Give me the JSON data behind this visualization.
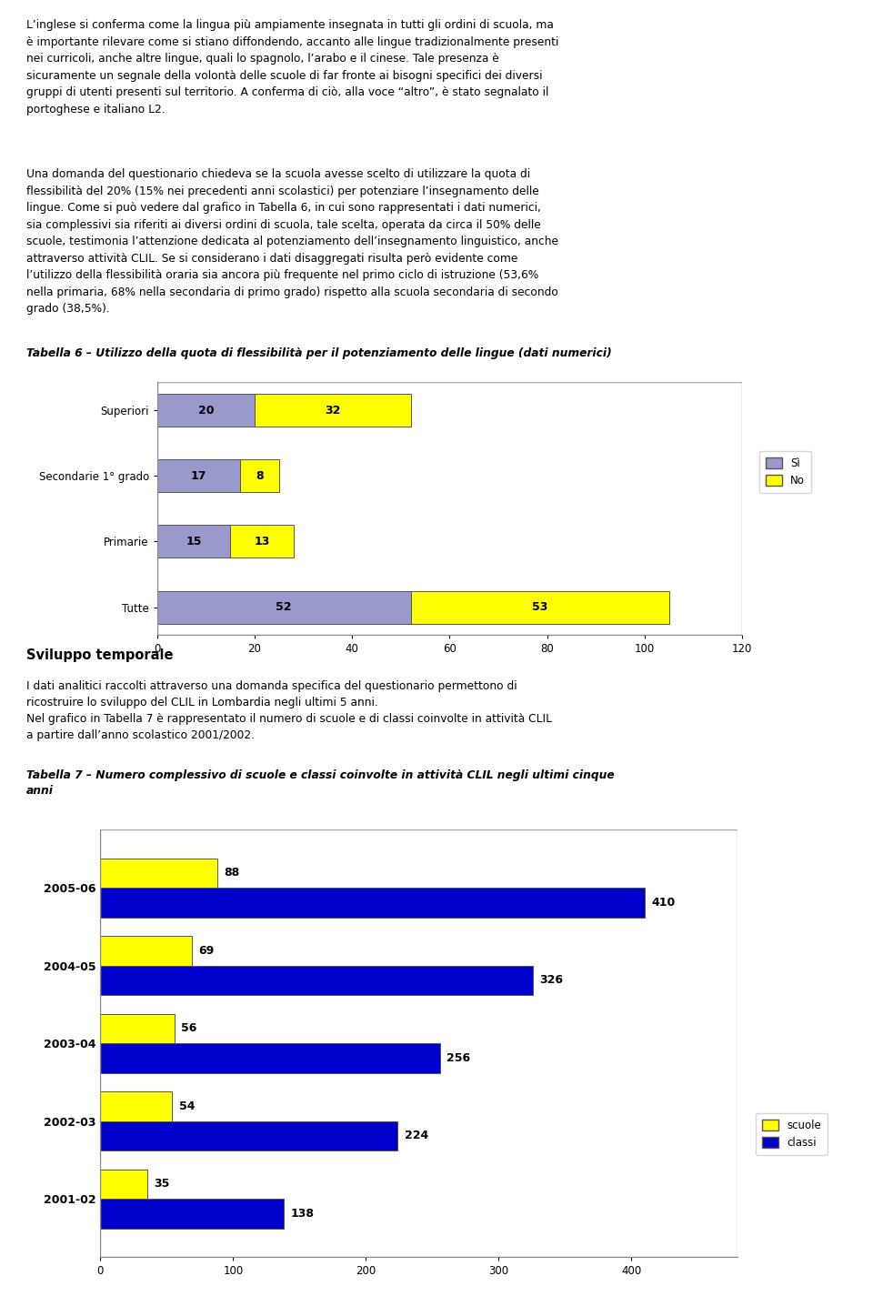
{
  "page_bg": "#ffffff",
  "text_color": "#000000",
  "intro_text": "L’inglese si conferma come la lingua più ampiamente insegnata in tutti gli ordini di scuola, ma\nè importante rilevare come si stiano diffondendo, accanto alle lingue tradizionalmente presenti\nnei curricoli, anche altre lingue, quali lo spagnolo, l’arabo e il cinese. Tale presenza è\nsicuramente un segnale della volontà delle scuole di far fronte ai bisogni specifici dei diversi\ngruppi di utenti presenti sul territorio. A conferma di ciò, alla voce “altro”, è stato segnalato il\nportoghese e italiano L2.",
  "mid_text": "Una domanda del questionario chiedeva se la scuola avesse scelto di utilizzare la quota di\nflessibilità del 20% (15% nei precedenti anni scolastici) per potenziare l’insegnamento delle\nlingue. Come si può vedere dal grafico in Tabella 6, in cui sono rappresentati i dati numerici,\nsia complessivi sia riferiti ai diversi ordini di scuola, tale scelta, operata da circa il 50% delle\nscuole, testimonia l’attenzione dedicata al potenziamento dell’insegnamento linguistico, anche\nattraverso attività CLIL. Se si considerano i dati disaggregati risulta però evidente come\nl’utilizzo della flessibilità oraria sia ancora più frequente nel primo ciclo di istruzione (53,6%\nnella primaria, 68% nella secondaria di primo grado) rispetto alla scuola secondaria di secondo\ngrado (38,5%).",
  "tab6_title": "Tabella 6 – Utilizzo della quota di flessibilità per il potenziamento delle lingue (dati numerici)",
  "chart1_categories": [
    "Superiori",
    "Secondarie 1° grado",
    "Primarie",
    "Tutte"
  ],
  "chart1_si": [
    20,
    17,
    15,
    52
  ],
  "chart1_no": [
    32,
    8,
    13,
    53
  ],
  "chart1_si_color": "#9999cc",
  "chart1_no_color": "#ffff00",
  "chart1_xlim": [
    0,
    120
  ],
  "chart1_xticks": [
    0,
    20,
    40,
    60,
    80,
    100,
    120
  ],
  "chart1_legend_si": "Sì",
  "chart1_legend_no": "No",
  "sviluppo_heading": "Sviluppo temporale",
  "bottom_text_line1": "I dati analitici raccolti attraverso una domanda specifica del questionario permettono di",
  "bottom_text_line2": "ricostruire lo sviluppo del CLIL in Lombardia negli ultimi 5 anni.",
  "bottom_text_line3": "Nel grafico in Tabella 7 è rappresentato il numero di scuole e di classi coinvolte in attività CLIL",
  "bottom_text_line4": "a partire dall’anno scolastico 2001/2002.",
  "tab7_title_line1": "Tabella 7 – Numero complessivo di scuole e classi coinvolte in attività CLIL negli ultimi cinque",
  "tab7_title_line2": "anni",
  "chart2_years": [
    "2005-06",
    "2004-05",
    "2003-04",
    "2002-03",
    "2001-02"
  ],
  "chart2_scuole": [
    88,
    69,
    56,
    54,
    35
  ],
  "chart2_classi": [
    410,
    326,
    256,
    224,
    138
  ],
  "chart2_scuole_color": "#ffff00",
  "chart2_classi_color": "#0000cc",
  "chart2_legend_scuole": "scuole",
  "chart2_legend_classi": "classi"
}
